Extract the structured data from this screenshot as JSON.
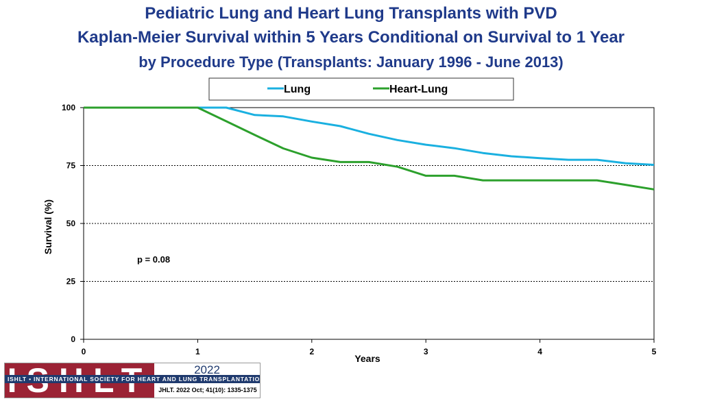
{
  "chart_data": {
    "type": "line",
    "title": "Pediatric Lung and Heart Lung Transplants with PVD",
    "subtitle": "Kaplan-Meier Survival within 5 Years Conditional on Survival to 1 Year",
    "subtitle2": "by Procedure Type (Transplants: January 1996 - June 2013)",
    "xlabel": "Years",
    "ylabel": "Survival (%)",
    "xlim": [
      0,
      5
    ],
    "ylim": [
      0,
      100
    ],
    "xticks": [
      0,
      1,
      2,
      3,
      4,
      5
    ],
    "yticks": [
      0,
      25,
      50,
      75,
      100
    ],
    "grid": "horizontal dashed",
    "legend_position": "top",
    "annotation": "p  = 0.08",
    "series": [
      {
        "name": "Lung",
        "color": "#1ab0e0",
        "x": [
          0,
          1,
          1.25,
          1.5,
          1.75,
          2,
          2.25,
          2.5,
          2.75,
          3,
          3.25,
          3.5,
          3.75,
          4,
          4.25,
          4.5,
          4.75,
          5
        ],
        "y": [
          100,
          100,
          100,
          96.8,
          96.2,
          94,
          92,
          88.7,
          86,
          84,
          82.5,
          80.4,
          79,
          78.2,
          77.5,
          77.5,
          76,
          75.3
        ]
      },
      {
        "name": "Heart-Lung",
        "color": "#2ca02c",
        "x": [
          0,
          1,
          1.25,
          1.5,
          1.75,
          2,
          2.25,
          2.5,
          2.75,
          3,
          3.25,
          3.5,
          3.75,
          4,
          4.25,
          4.5,
          4.75,
          5
        ],
        "y": [
          100,
          100,
          94.1,
          88.2,
          82.4,
          78.4,
          76.5,
          76.5,
          74.5,
          70.6,
          70.6,
          68.6,
          68.6,
          68.6,
          68.6,
          68.6,
          66.7,
          64.7
        ]
      }
    ]
  },
  "footer": {
    "logo_text": "ISHLT",
    "org_name": "ISHLT • INTERNATIONAL SOCIETY FOR HEART AND LUNG TRANSPLANTATION",
    "year": "2022",
    "citation": "JHLT. 2022 Oct; 41(10): 1335-1375"
  }
}
